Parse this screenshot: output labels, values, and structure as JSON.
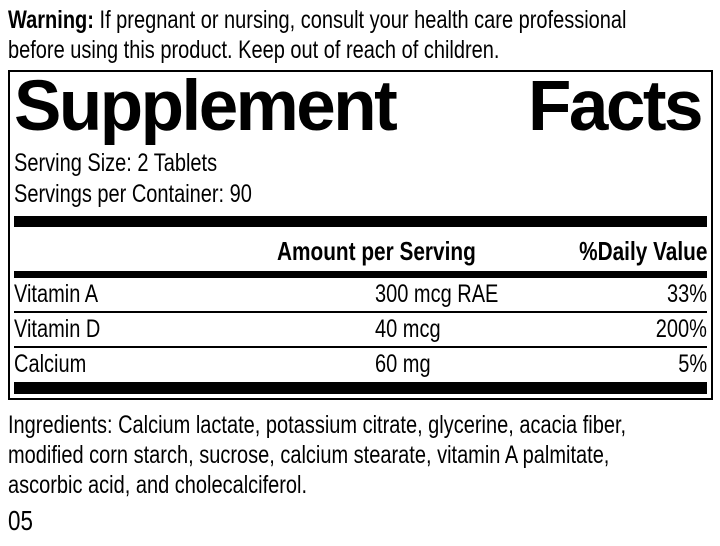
{
  "colors": {
    "ink": "#000000",
    "background": "#ffffff"
  },
  "warning": {
    "label": "Warning:",
    "line1": "If pregnant or nursing, consult your health care professional",
    "line2": "before using this product. Keep out of reach of children."
  },
  "panel": {
    "title_words": [
      "Supplement",
      "Facts"
    ],
    "serving_size": "Serving Size: 2 Tablets",
    "servings_per_container": "Servings per Container: 90",
    "columns": {
      "amount": "Amount per Serving",
      "daily_value": "%Daily Value"
    },
    "rows": [
      {
        "name": "Vitamin A",
        "amount": "300 mcg RAE",
        "daily_value": "33%"
      },
      {
        "name": "Vitamin D",
        "amount": "40 mcg",
        "daily_value": "200%"
      },
      {
        "name": "Calcium",
        "amount": "60 mg",
        "daily_value": "5%"
      }
    ]
  },
  "ingredients": {
    "line1": "Ingredients: Calcium lactate, potassium citrate, glycerine, acacia fiber,",
    "line2": "modified corn starch, sucrose, calcium stearate, vitamin A palmitate,",
    "line3": "ascorbic acid, and cholecalciferol."
  },
  "footer_code": "05"
}
